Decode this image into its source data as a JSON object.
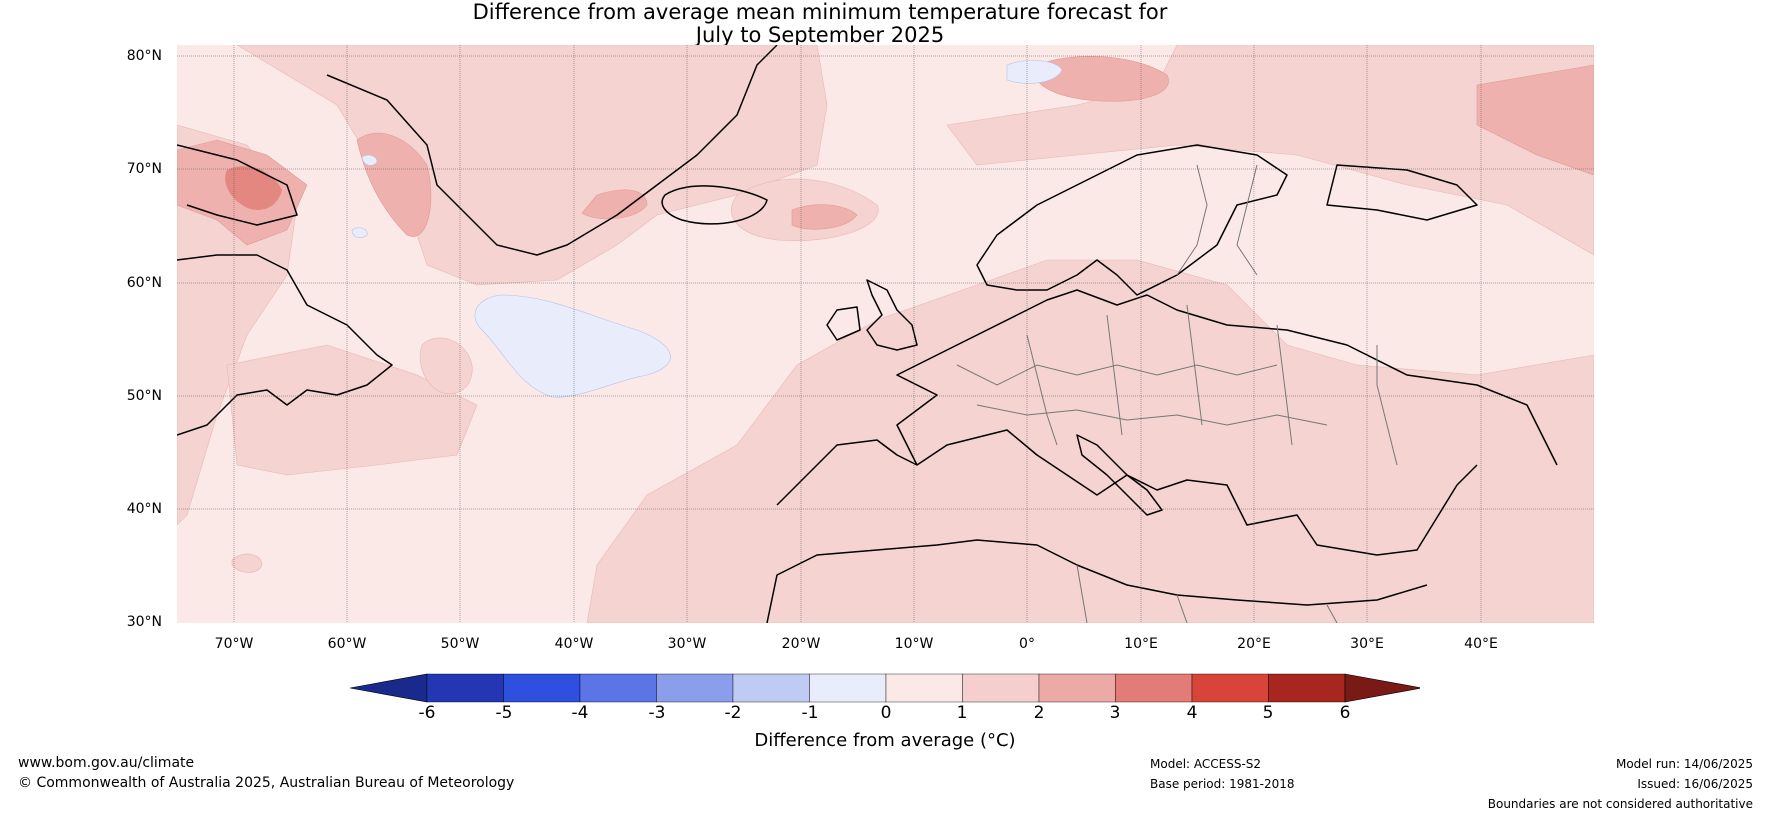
{
  "title": {
    "line1": "Difference from average mean minimum temperature forecast for",
    "line2": "July to September 2025"
  },
  "map": {
    "extent": {
      "lon_min": -75,
      "lon_max": 50,
      "lat_min": 30,
      "lat_max": 81
    },
    "lat_labels": [
      "80°N",
      "70°N",
      "60°N",
      "50°N",
      "40°N",
      "30°N"
    ],
    "lon_labels": [
      "70°W",
      "60°W",
      "50°W",
      "40°W",
      "30°W",
      "20°W",
      "10°W",
      "0°",
      "10°E",
      "20°E",
      "30°E",
      "40°E"
    ],
    "grid": true,
    "dominant_anomaly": "0 to 1",
    "features": [
      "Greenland",
      "Iceland",
      "Scandinavia",
      "British Isles",
      "Europe",
      "Mediterranean",
      "North Africa",
      "Canada"
    ]
  },
  "colorbar": {
    "label": "Difference from average (°C)",
    "ticks": [
      "-6",
      "-5",
      "-4",
      "-3",
      "-2",
      "-1",
      "0",
      "1",
      "2",
      "3",
      "4",
      "5",
      "6"
    ],
    "colors": [
      "#1a2a8c",
      "#2336b3",
      "#2f4fde",
      "#5b74e6",
      "#8a9eec",
      "#c0cbf4",
      "#e8ecfb",
      "#fbe9e7",
      "#f4cfcd",
      "#ecaaa7",
      "#e37b76",
      "#d9443a",
      "#a92620",
      "#7a1a17"
    ]
  },
  "footer": {
    "website": "www.bom.gov.au/climate",
    "copyright": "© Commonwealth of Australia 2025, Australian Bureau of Meteorology",
    "model": "Model: ACCESS-S2",
    "base_period": "Base period: 1981-2018",
    "model_run": "Model run: 14/06/2025",
    "issued": "Issued: 16/06/2025",
    "disclaimer": "Boundaries are not considered authoritative"
  }
}
